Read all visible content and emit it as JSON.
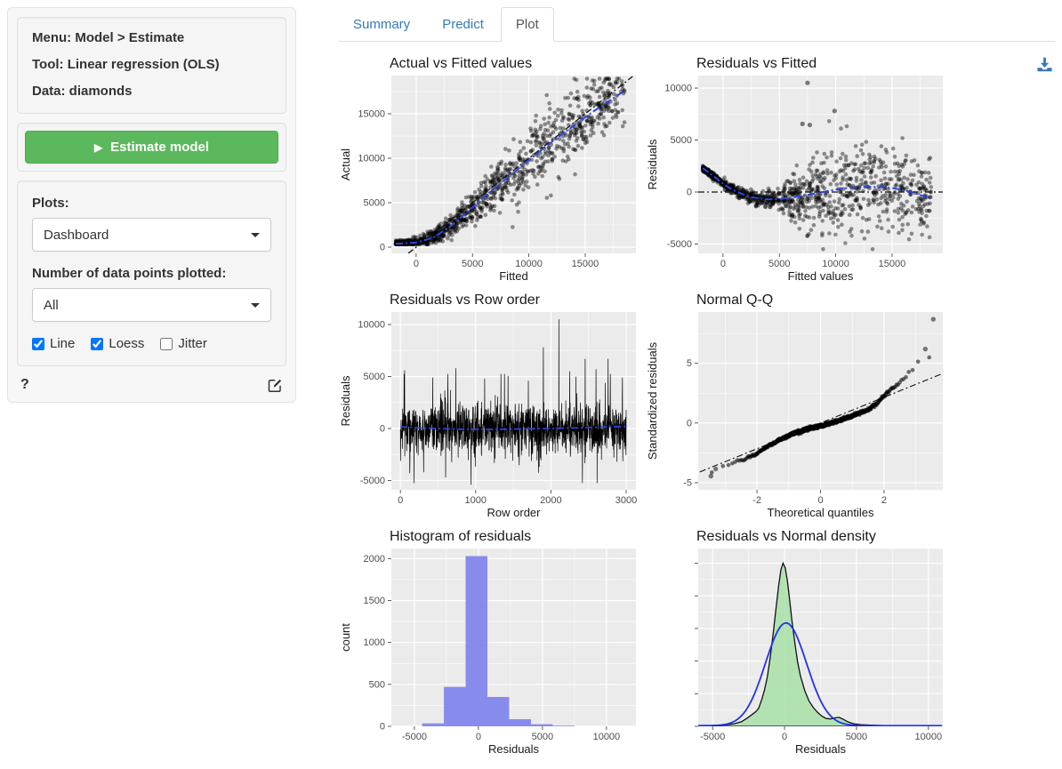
{
  "sidebar": {
    "info": {
      "menu": "Menu: Model > Estimate",
      "tool": "Tool: Linear regression (OLS)",
      "data": "Data: diamonds"
    },
    "estimate_button_label": "Estimate model",
    "plots_label": "Plots:",
    "plots_value": "Dashboard",
    "npoints_label": "Number of data points plotted:",
    "npoints_value": "All",
    "checkboxes": [
      {
        "label": "Line",
        "checked": true
      },
      {
        "label": "Loess",
        "checked": true
      },
      {
        "label": "Jitter",
        "checked": false
      }
    ],
    "help_label": "?"
  },
  "tabs": [
    {
      "label": "Summary",
      "active": false
    },
    {
      "label": "Predict",
      "active": false
    },
    {
      "label": "Plot",
      "active": true
    }
  ],
  "colors": {
    "link_blue": "#337ab7",
    "button_green": "#5cb85c",
    "button_green_border": "#4cae4c",
    "panel_bg": "#EBEBEB",
    "loess_blue": "#2b46e8",
    "normal_curve_blue": "#2233ee",
    "histogram_fill": "#7e83eb",
    "density_green_fill": "#a8dfa8",
    "point_black": "#000000",
    "tick_label": "#4d4d4d"
  },
  "chart_data": {
    "plots": [
      {
        "name": "actual-vs-fitted",
        "type": "scatter",
        "title": "Actual vs Fitted values",
        "xlabel": "Fitted",
        "ylabel": "Actual",
        "xlim": [
          -2200,
          19500
        ],
        "ylim": [
          -700,
          19300
        ],
        "xticks": [
          0,
          5000,
          10000,
          15000
        ],
        "yticks": [
          0,
          5000,
          10000,
          15000
        ],
        "points": {
          "n": 1100,
          "seed": 11,
          "x_min": -1800,
          "x_span": 20300,
          "x_pow": 1.45,
          "center": [
            [
              -1800,
              380
            ],
            [
              0,
              520
            ],
            [
              1500,
              1050
            ],
            [
              3000,
              2300
            ],
            [
              4500,
              3900
            ],
            [
              6000,
              5600
            ],
            [
              8000,
              7700
            ],
            [
              10000,
              9800
            ],
            [
              12000,
              11800
            ],
            [
              14000,
              13700
            ],
            [
              16000,
              15500
            ],
            [
              18500,
              17600
            ]
          ],
          "noise": [
            [
              -1800,
              160
            ],
            [
              0,
              260
            ],
            [
              3000,
              620
            ],
            [
              6000,
              1150
            ],
            [
              10000,
              1850
            ],
            [
              14000,
              2150
            ],
            [
              18500,
              1500
            ]
          ],
          "clamp": [
            326,
            18950
          ],
          "r": 2.3,
          "alpha": 0.42
        },
        "ref_line": {
          "x1": -700,
          "y1": -700,
          "x2": 19200,
          "y2": 19200
        },
        "smooth": [
          [
            -1800,
            380
          ],
          [
            0,
            520
          ],
          [
            1500,
            1050
          ],
          [
            3000,
            2300
          ],
          [
            4500,
            3900
          ],
          [
            6000,
            5600
          ],
          [
            8000,
            7700
          ],
          [
            10000,
            9800
          ],
          [
            12000,
            11800
          ],
          [
            14000,
            13700
          ],
          [
            16000,
            15500
          ],
          [
            18500,
            17600
          ]
        ]
      },
      {
        "name": "residuals-vs-fitted",
        "type": "scatter",
        "title": "Residuals vs Fitted",
        "xlabel": "Fitted values",
        "ylabel": "Residuals",
        "xlim": [
          -2200,
          19500
        ],
        "ylim": [
          -5900,
          11200
        ],
        "xticks": [
          0,
          5000,
          10000,
          15000
        ],
        "yticks": [
          -5000,
          0,
          5000,
          10000
        ],
        "points": {
          "n": 1100,
          "seed": 22,
          "x_min": -1800,
          "x_span": 20300,
          "x_pow": 1.45,
          "center": [
            [
              -1800,
              2300
            ],
            [
              -800,
              1500
            ],
            [
              0,
              800
            ],
            [
              800,
              250
            ],
            [
              1600,
              -150
            ],
            [
              2400,
              -450
            ],
            [
              3200,
              -620
            ],
            [
              4000,
              -700
            ],
            [
              5000,
              -680
            ],
            [
              6000,
              -550
            ],
            [
              7000,
              -380
            ],
            [
              8000,
              -180
            ],
            [
              9000,
              30
            ],
            [
              10000,
              230
            ],
            [
              11000,
              380
            ],
            [
              12000,
              470
            ],
            [
              13000,
              500
            ],
            [
              14000,
              480
            ],
            [
              15000,
              380
            ],
            [
              16000,
              200
            ],
            [
              17000,
              -100
            ],
            [
              18500,
              -650
            ]
          ],
          "noise": [
            [
              -1800,
              120
            ],
            [
              0,
              200
            ],
            [
              2000,
              300
            ],
            [
              4000,
              380
            ],
            [
              5000,
              600
            ],
            [
              6000,
              1100
            ],
            [
              8000,
              1700
            ],
            [
              10000,
              2000
            ],
            [
              13000,
              2100
            ],
            [
              16000,
              1900
            ],
            [
              18500,
              1600
            ]
          ],
          "clamp": [
            -5500,
            8200
          ],
          "r": 2.3,
          "alpha": 0.42,
          "outliers": [
            [
              7500,
              10500
            ],
            [
              9900,
              7800
            ],
            [
              7050,
              6550
            ],
            [
              7700,
              6450
            ]
          ]
        },
        "ref_line": {
          "x1": -2200,
          "y1": 0,
          "x2": 19500,
          "y2": 0
        },
        "smooth": [
          [
            -1800,
            2300
          ],
          [
            -800,
            1500
          ],
          [
            0,
            800
          ],
          [
            800,
            250
          ],
          [
            1600,
            -150
          ],
          [
            2400,
            -450
          ],
          [
            3200,
            -620
          ],
          [
            4000,
            -700
          ],
          [
            5000,
            -680
          ],
          [
            6000,
            -550
          ],
          [
            7000,
            -380
          ],
          [
            8000,
            -180
          ],
          [
            9000,
            30
          ],
          [
            10000,
            230
          ],
          [
            11000,
            380
          ],
          [
            12000,
            470
          ],
          [
            13000,
            500
          ],
          [
            14000,
            480
          ],
          [
            15000,
            380
          ],
          [
            16000,
            200
          ],
          [
            17000,
            -100
          ],
          [
            18500,
            -650
          ]
        ]
      },
      {
        "name": "residuals-vs-row-order",
        "type": "tsline",
        "title": "Residuals vs Row order",
        "xlabel": "Row order",
        "ylabel": "Residuals",
        "xlim": [
          -120,
          3130
        ],
        "ylim": [
          -5900,
          11200
        ],
        "xticks": [
          0,
          1000,
          2000,
          3000
        ],
        "yticks": [
          -5000,
          0,
          5000,
          10000
        ],
        "series": {
          "n": 1400,
          "seed": 33,
          "sd": 1150,
          "spike_p": 0.05,
          "spike_min": 1.6,
          "spike_max": 3.0,
          "x_max": 3000,
          "clamp": 5250,
          "extremes": [
            [
              55,
              5600
            ],
            [
              125,
              -4300
            ],
            [
              430,
              4900
            ],
            [
              600,
              -4700
            ],
            [
              735,
              5800
            ],
            [
              940,
              -5400
            ],
            [
              1120,
              4800
            ],
            [
              1430,
              5050
            ],
            [
              1700,
              4600
            ],
            [
              1900,
              7800
            ],
            [
              2105,
              10500
            ],
            [
              2250,
              5500
            ],
            [
              2455,
              6700
            ],
            [
              2600,
              5700
            ],
            [
              2760,
              6700
            ],
            [
              2950,
              4900
            ]
          ]
        },
        "smooth": [
          [
            0,
            150
          ],
          [
            400,
            20
          ],
          [
            800,
            -70
          ],
          [
            1200,
            -90
          ],
          [
            1600,
            -40
          ],
          [
            2000,
            10
          ],
          [
            2400,
            70
          ],
          [
            2800,
            150
          ],
          [
            3000,
            200
          ]
        ]
      },
      {
        "name": "normal-qq",
        "type": "qq",
        "title": "Normal Q-Q",
        "xlabel": "Theoretical quantiles",
        "ylabel": "Standardized residuals",
        "xlim": [
          -3.85,
          3.85
        ],
        "ylim": [
          -5.6,
          9.3
        ],
        "xticks": [
          -2,
          0,
          2
        ],
        "yticks": [
          -5,
          0,
          5
        ],
        "points": {
          "n": 800,
          "seed": 44,
          "q_scale": 1.06,
          "jitter": 0.06,
          "r": 2.3,
          "alpha": 0.55,
          "map": [
            [
              -3.6,
              -4.45
            ],
            [
              -3.2,
              -3.8
            ],
            [
              -2.8,
              -3.35
            ],
            [
              -2.4,
              -3.05
            ],
            [
              -2.0,
              -2.55
            ],
            [
              -1.6,
              -1.85
            ],
            [
              -1.2,
              -1.3
            ],
            [
              -0.8,
              -0.85
            ],
            [
              -0.4,
              -0.5
            ],
            [
              0,
              -0.25
            ],
            [
              0.4,
              0.05
            ],
            [
              0.8,
              0.4
            ],
            [
              1.2,
              0.8
            ],
            [
              1.5,
              1.1
            ],
            [
              1.8,
              1.7
            ],
            [
              2.0,
              2.3
            ],
            [
              2.2,
              2.8
            ],
            [
              2.5,
              3.4
            ],
            [
              2.8,
              4.3
            ],
            [
              3.0,
              4.9
            ],
            [
              3.2,
              5.4
            ],
            [
              3.4,
              5.5
            ]
          ],
          "outliers": [
            [
              3.55,
              8.7
            ],
            [
              3.3,
              6.2
            ],
            [
              -3.45,
              -4.45
            ],
            [
              -3.3,
              -3.85
            ]
          ]
        },
        "ref_line": {
          "x1": -3.8,
          "y1": -4.1,
          "x2": 3.8,
          "y2": 4.1
        }
      },
      {
        "name": "histogram-of-residuals",
        "type": "histogram",
        "title": "Histogram of residuals",
        "xlabel": "Residuals",
        "ylabel": "count",
        "xlim": [
          -6800,
          12300
        ],
        "ylim": [
          0,
          2120
        ],
        "xticks": [
          -5000,
          0,
          5000,
          10000
        ],
        "yticks": [
          0,
          500,
          1000,
          1500,
          2000
        ],
        "bin_edges": [
          -4400,
          -2700,
          -1000,
          700,
          2400,
          4100,
          5800,
          7500
        ],
        "counts": [
          35,
          470,
          2030,
          350,
          85,
          25,
          8
        ]
      },
      {
        "name": "residuals-vs-normal-density",
        "type": "density",
        "title": "Residuals vs Normal density",
        "xlabel": "Residuals",
        "ylabel": "",
        "xlim": [
          -6000,
          11000
        ],
        "ylim": [
          0,
          1.09
        ],
        "xticks": [
          -5000,
          0,
          5000,
          10000
        ],
        "yticks": [
          0,
          0.2,
          0.4,
          0.6,
          0.8,
          1.0
        ],
        "ytick_labels": false,
        "green_density": [
          [
            -5400,
            0.004
          ],
          [
            -4600,
            0.006
          ],
          [
            -4000,
            0.01
          ],
          [
            -3500,
            0.016
          ],
          [
            -3000,
            0.028
          ],
          [
            -2600,
            0.05
          ],
          [
            -2300,
            0.07
          ],
          [
            -2000,
            0.09
          ],
          [
            -1800,
            0.11
          ],
          [
            -1600,
            0.16
          ],
          [
            -1400,
            0.22
          ],
          [
            -1200,
            0.3
          ],
          [
            -1000,
            0.42
          ],
          [
            -800,
            0.56
          ],
          [
            -600,
            0.72
          ],
          [
            -400,
            0.87
          ],
          [
            -250,
            0.96
          ],
          [
            -100,
            1.0
          ],
          [
            50,
            0.97
          ],
          [
            200,
            0.89
          ],
          [
            350,
            0.78
          ],
          [
            500,
            0.66
          ],
          [
            700,
            0.52
          ],
          [
            900,
            0.4
          ],
          [
            1100,
            0.31
          ],
          [
            1400,
            0.22
          ],
          [
            1700,
            0.155
          ],
          [
            2000,
            0.115
          ],
          [
            2300,
            0.085
          ],
          [
            2600,
            0.062
          ],
          [
            2900,
            0.048
          ],
          [
            3200,
            0.045
          ],
          [
            3500,
            0.052
          ],
          [
            3800,
            0.055
          ],
          [
            4100,
            0.042
          ],
          [
            4400,
            0.028
          ],
          [
            4800,
            0.016
          ],
          [
            5300,
            0.01
          ],
          [
            6000,
            0.007
          ],
          [
            7000,
            0.004
          ],
          [
            8000,
            0.003
          ],
          [
            9000,
            0.002
          ],
          [
            10500,
            0.002
          ]
        ],
        "normal_curve": {
          "mean": 100,
          "sd": 1430,
          "peak": 0.63
        }
      }
    ]
  }
}
